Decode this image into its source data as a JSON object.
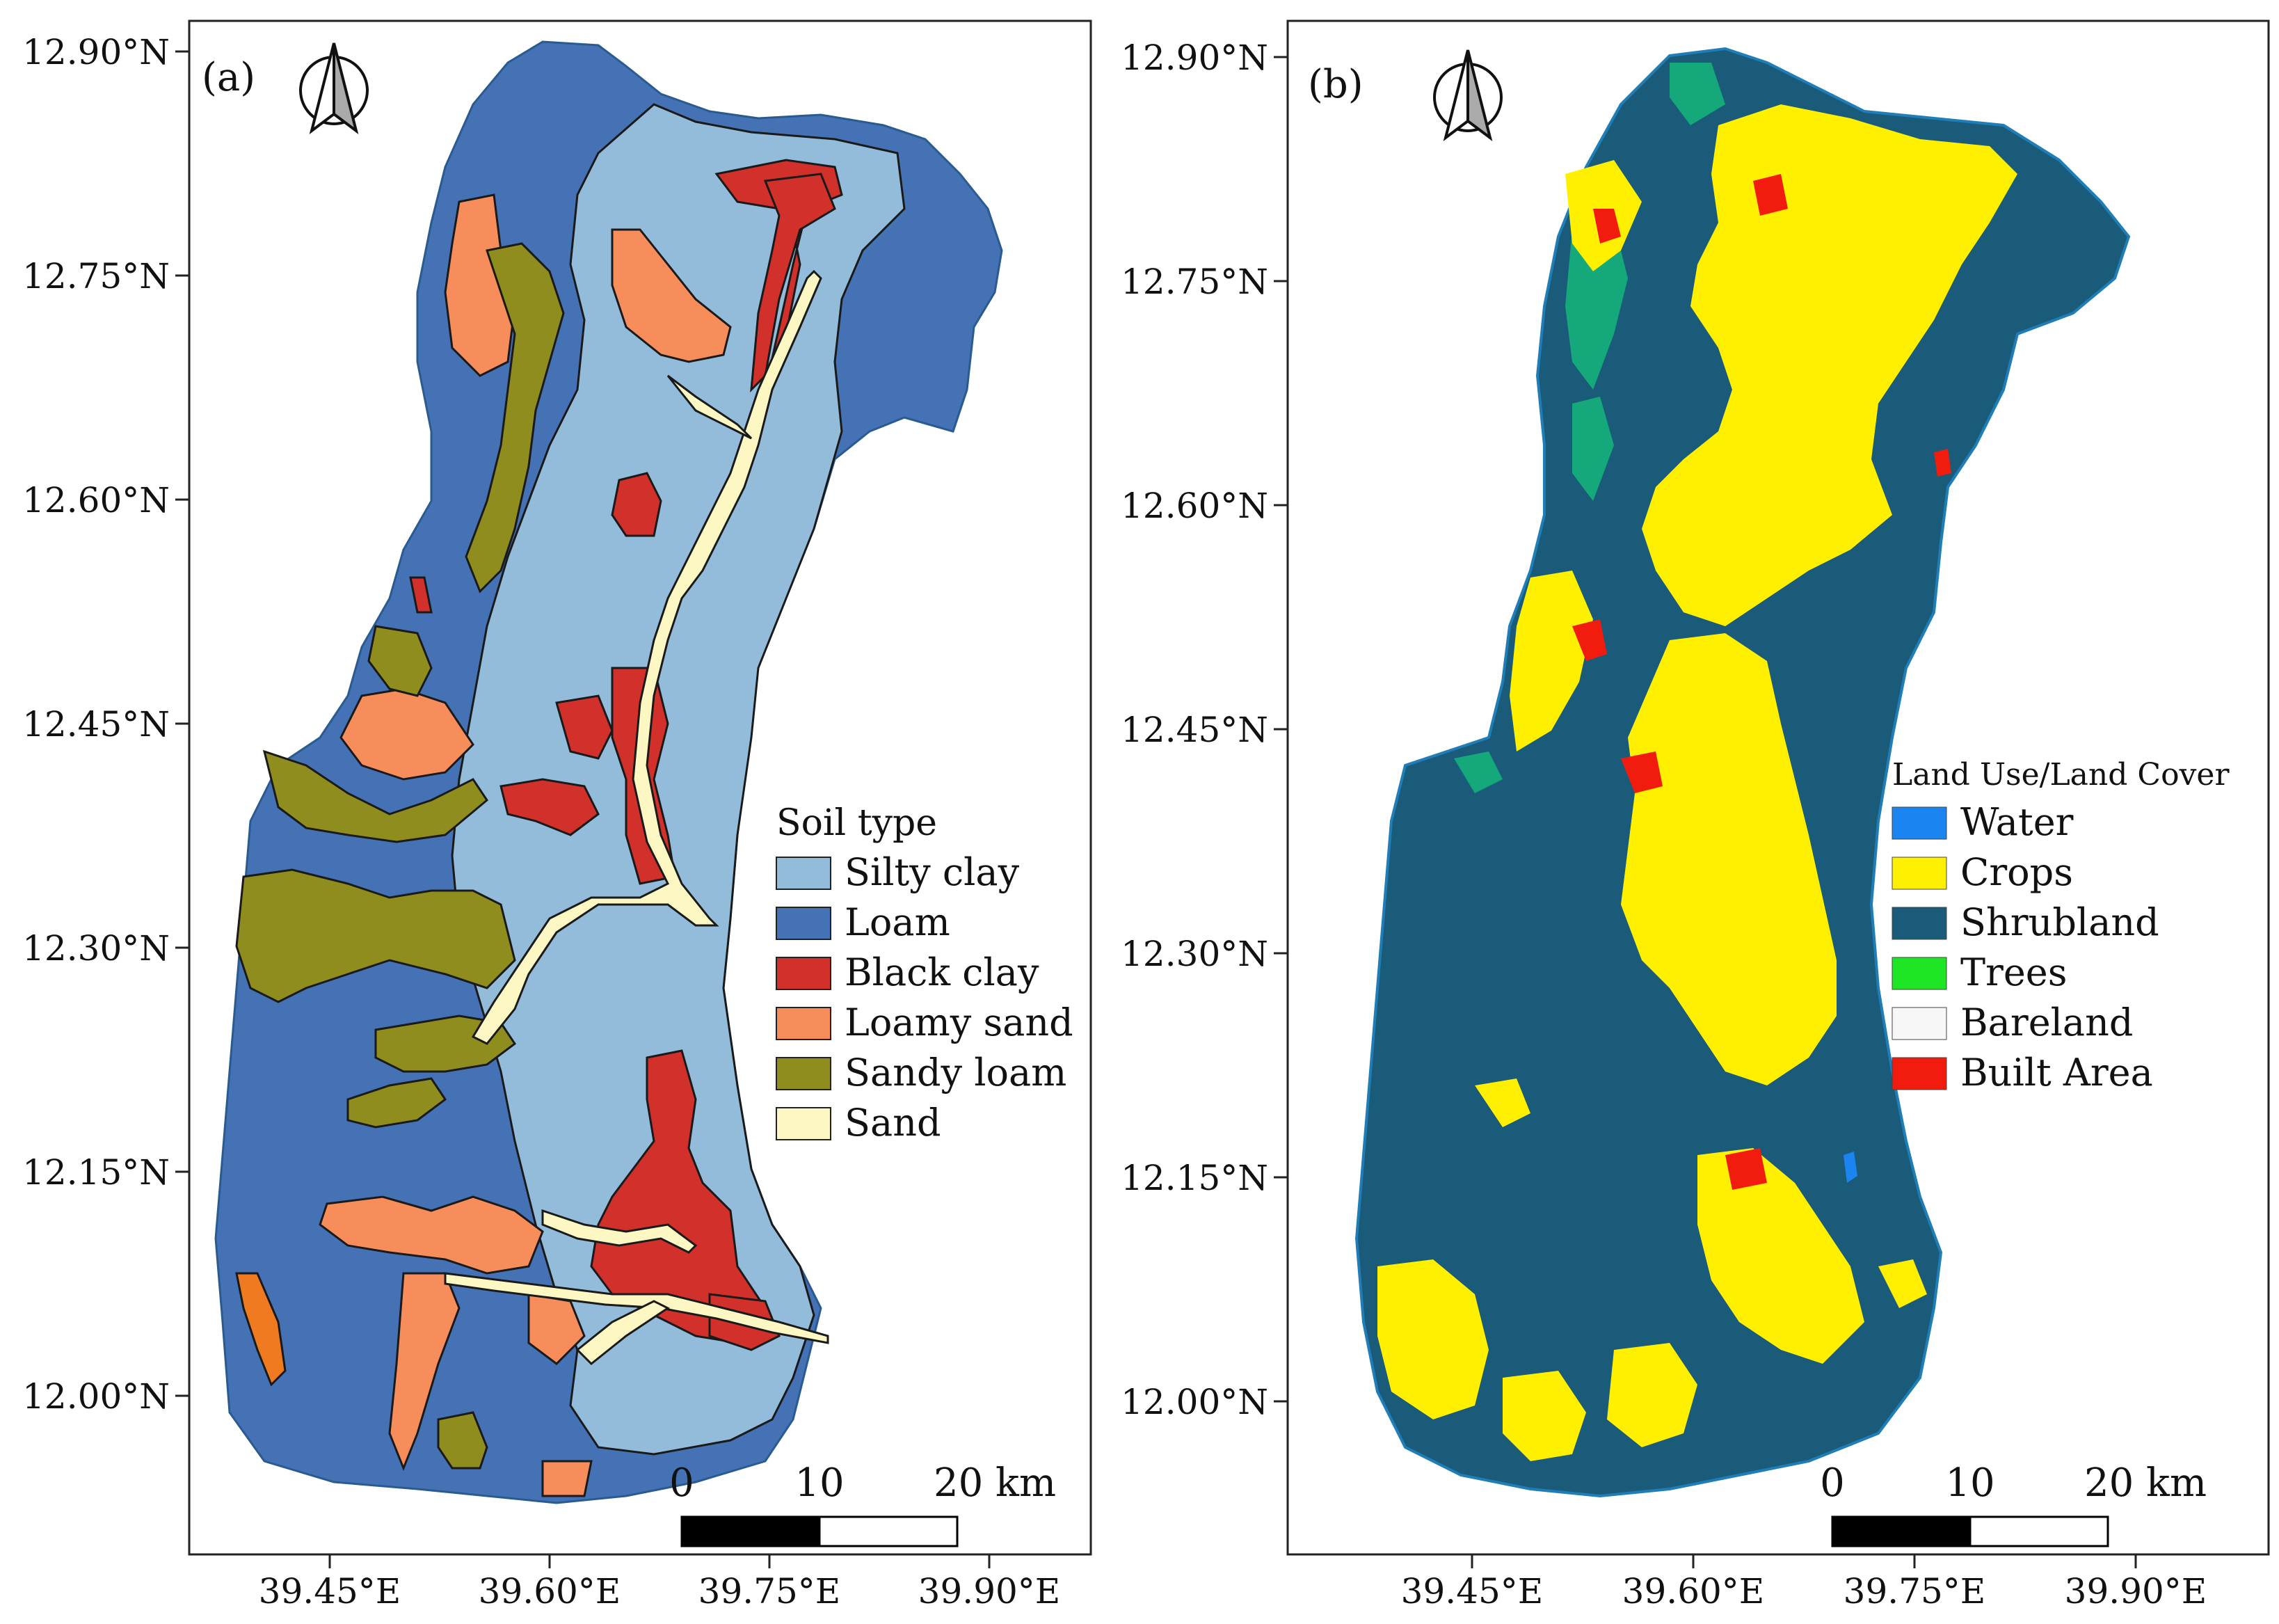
{
  "panel_a": {
    "label": "(a)",
    "lat_ticks": [
      "12.90°N",
      "12.75°N",
      "12.60°N",
      "12.45°N",
      "12.30°N",
      "12.15°N",
      "12.00°N"
    ],
    "lon_ticks": [
      "39.45°E",
      "39.60°E",
      "39.75°E",
      "39.90°E"
    ],
    "legend": {
      "title": "Soil type",
      "items": [
        {
          "label": "Silty clay",
          "color": "#93bcdb"
        },
        {
          "label": "Loam",
          "color": "#4472b4"
        },
        {
          "label": "Black clay",
          "color": "#d2302a"
        },
        {
          "label": "Loamy sand",
          "color": "#f88d5c"
        },
        {
          "label": "Sandy loam",
          "color": "#8f8d1e"
        },
        {
          "label": "Sand",
          "color": "#fdf7c3"
        }
      ]
    },
    "scale": {
      "labels": [
        "0",
        "10",
        "20 km"
      ]
    }
  },
  "panel_b": {
    "label": "(b)",
    "lat_ticks": [
      "12.90°N",
      "12.75°N",
      "12.60°N",
      "12.45°N",
      "12.30°N",
      "12.15°N",
      "12.00°N"
    ],
    "lon_ticks": [
      "39.45°E",
      "39.60°E",
      "39.75°E",
      "39.90°E"
    ],
    "legend": {
      "title": "Land Use/Land Cover",
      "items": [
        {
          "label": "Water",
          "color": "#1a84f0"
        },
        {
          "label": "Crops",
          "color": "#fff000"
        },
        {
          "label": "Shrubland",
          "color": "#195b78"
        },
        {
          "label": "Trees",
          "color": "#1ee624"
        },
        {
          "label": "Bareland",
          "color": "#f7f7f7"
        },
        {
          "label": "Built Area",
          "color": "#f21c0e"
        }
      ]
    },
    "scale": {
      "labels": [
        "0",
        "10",
        "20 km"
      ]
    }
  }
}
